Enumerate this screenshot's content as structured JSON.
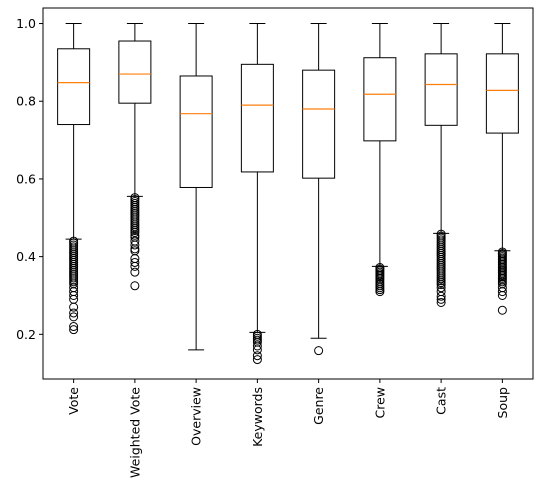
{
  "chart_data": {
    "type": "boxplot",
    "title": "",
    "xlabel": "",
    "ylabel": "",
    "ylim": [
      0.085,
      1.04
    ],
    "y_ticks": [
      0.2,
      0.4,
      0.6,
      0.8,
      1.0
    ],
    "y_tick_labels": [
      "0.2",
      "0.4",
      "0.6",
      "0.8",
      "1.0"
    ],
    "categories": [
      "Vote",
      "Weighted Vote",
      "Overview",
      "Keywords",
      "Genre",
      "Crew",
      "Cast",
      "Soup"
    ],
    "grid": false,
    "colors": {
      "box": "#000000",
      "median": "#ff7f0e",
      "flier": "#000000",
      "background": "#ffffff"
    },
    "boxes": [
      {
        "category": "Vote",
        "whisker_low": 0.445,
        "q1": 0.74,
        "median": 0.848,
        "q3": 0.935,
        "whisker_high": 1.0,
        "outliers": [
          0.44,
          0.435,
          0.43,
          0.425,
          0.42,
          0.415,
          0.41,
          0.405,
          0.4,
          0.395,
          0.39,
          0.385,
          0.38,
          0.375,
          0.37,
          0.365,
          0.36,
          0.355,
          0.35,
          0.345,
          0.34,
          0.335,
          0.33,
          0.32,
          0.31,
          0.3,
          0.29,
          0.27,
          0.255,
          0.245,
          0.22,
          0.212
        ]
      },
      {
        "category": "Weighted Vote",
        "whisker_low": 0.555,
        "q1": 0.795,
        "median": 0.87,
        "q3": 0.955,
        "whisker_high": 1.0,
        "outliers": [
          0.552,
          0.547,
          0.542,
          0.537,
          0.532,
          0.527,
          0.522,
          0.517,
          0.512,
          0.507,
          0.502,
          0.497,
          0.492,
          0.487,
          0.482,
          0.477,
          0.472,
          0.467,
          0.462,
          0.455,
          0.45,
          0.44,
          0.43,
          0.42,
          0.415,
          0.395,
          0.385,
          0.375,
          0.36,
          0.325
        ]
      },
      {
        "category": "Overview",
        "whisker_low": 0.16,
        "q1": 0.578,
        "median": 0.768,
        "q3": 0.865,
        "whisker_high": 1.0,
        "outliers": []
      },
      {
        "category": "Keywords",
        "whisker_low": 0.205,
        "q1": 0.618,
        "median": 0.79,
        "q3": 0.895,
        "whisker_high": 1.0,
        "outliers": [
          0.2,
          0.195,
          0.19,
          0.185,
          0.18,
          0.17,
          0.16,
          0.145,
          0.135
        ]
      },
      {
        "category": "Genre",
        "whisker_low": 0.19,
        "q1": 0.602,
        "median": 0.78,
        "q3": 0.88,
        "whisker_high": 1.0,
        "outliers": [
          0.158
        ]
      },
      {
        "category": "Crew",
        "whisker_low": 0.375,
        "q1": 0.698,
        "median": 0.818,
        "q3": 0.912,
        "whisker_high": 1.0,
        "outliers": [
          0.372,
          0.368,
          0.364,
          0.36,
          0.356,
          0.352,
          0.348,
          0.344,
          0.34,
          0.335,
          0.33,
          0.325,
          0.32,
          0.315,
          0.31
        ]
      },
      {
        "category": "Cast",
        "whisker_low": 0.46,
        "q1": 0.738,
        "median": 0.843,
        "q3": 0.922,
        "whisker_high": 1.0,
        "outliers": [
          0.458,
          0.453,
          0.448,
          0.443,
          0.438,
          0.433,
          0.428,
          0.423,
          0.418,
          0.413,
          0.408,
          0.403,
          0.398,
          0.393,
          0.388,
          0.383,
          0.378,
          0.373,
          0.368,
          0.363,
          0.358,
          0.353,
          0.348,
          0.343,
          0.338,
          0.333,
          0.328,
          0.32,
          0.31,
          0.298,
          0.29,
          0.282
        ]
      },
      {
        "category": "Soup",
        "whisker_low": 0.415,
        "q1": 0.718,
        "median": 0.828,
        "q3": 0.922,
        "whisker_high": 1.0,
        "outliers": [
          0.412,
          0.408,
          0.404,
          0.4,
          0.396,
          0.392,
          0.388,
          0.384,
          0.38,
          0.376,
          0.372,
          0.368,
          0.364,
          0.36,
          0.356,
          0.352,
          0.348,
          0.344,
          0.34,
          0.335,
          0.33,
          0.32,
          0.31,
          0.3,
          0.262
        ]
      }
    ]
  }
}
